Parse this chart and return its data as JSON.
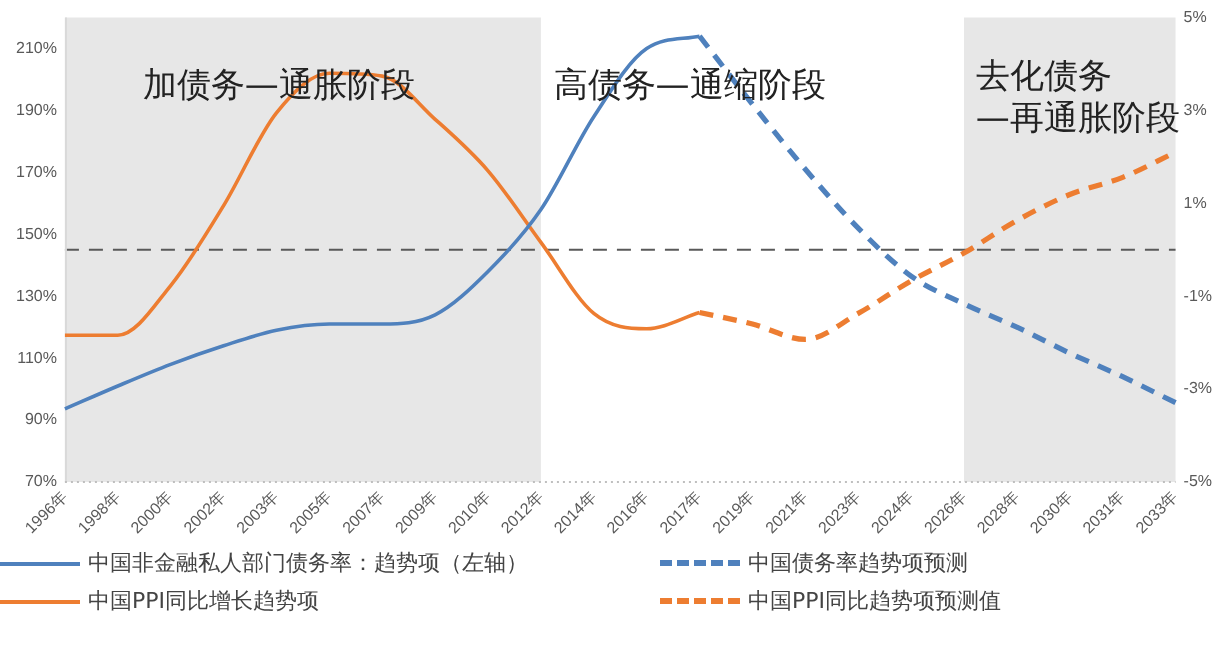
{
  "chart_data": {
    "type": "line",
    "categories": [
      "1996年",
      "1998年",
      "2000年",
      "2002年",
      "2003年",
      "2005年",
      "2007年",
      "2009年",
      "2010年",
      "2012年",
      "2014年",
      "2016年",
      "2017年",
      "2019年",
      "2021年",
      "2023年",
      "2024年",
      "2026年",
      "2028年",
      "2030年",
      "2031年",
      "2033年"
    ],
    "series": [
      {
        "name": "中国非金融私人部门债务率：趋势项（左轴）",
        "color": "#4f81bd",
        "values": [
          93.6,
          101,
          108,
          114,
          119,
          121,
          121,
          124,
          138,
          158,
          188,
          210,
          214,
          null,
          null,
          null,
          null,
          null,
          null,
          null,
          null,
          null
        ]
      },
      {
        "name": "中国债务率趋势项预测",
        "color": "#4f81bd",
        "line_style": "dashed",
        "values": [
          null,
          null,
          null,
          null,
          null,
          null,
          null,
          null,
          null,
          null,
          null,
          null,
          214,
          192,
          171,
          152,
          136.5,
          127.5,
          120,
          111.6,
          104,
          95.6
        ]
      },
      {
        "name": "中国PPI同比增长趋势项",
        "color": "#ed7d31",
        "axis": "y2",
        "values": [
          -1.84,
          -1.84,
          -0.77,
          0.95,
          2.95,
          3.8,
          3.74,
          2.81,
          1.7,
          0.16,
          -1.37,
          -1.7,
          -1.35,
          null,
          null,
          null,
          null,
          null,
          null,
          null,
          null,
          null
        ]
      },
      {
        "name": "中国PPI同比趋势项预测值",
        "color": "#ed7d31",
        "axis": "y2",
        "line_style": "dashed",
        "values": [
          null,
          null,
          null,
          null,
          null,
          null,
          null,
          null,
          null,
          null,
          null,
          null,
          -1.35,
          -1.6,
          -1.93,
          -1.37,
          -0.67,
          -0.07,
          0.63,
          1.19,
          1.56,
          2.1
        ]
      }
    ],
    "ylim": [
      70,
      220
    ],
    "yticks": [
      {
        "value": 70,
        "label": "70%"
      },
      {
        "value": 90,
        "label": "90%"
      },
      {
        "value": 110,
        "label": "110%"
      },
      {
        "value": 130,
        "label": "130%"
      },
      {
        "value": 150,
        "label": "150%"
      },
      {
        "value": 170,
        "label": "170%"
      },
      {
        "value": 190,
        "label": "190%"
      },
      {
        "value": 210,
        "label": "210%"
      }
    ],
    "y2lim": [
      -5,
      5
    ],
    "y2ticks": [
      {
        "value": -5,
        "label": "-5%"
      },
      {
        "value": -3,
        "label": "-3%"
      },
      {
        "value": -1,
        "label": "-1%"
      },
      {
        "value": 1,
        "label": "1%"
      },
      {
        "value": 3,
        "label": "3%"
      },
      {
        "value": 5,
        "label": "5%"
      }
    ],
    "bands": [
      {
        "axis": "x",
        "from": "1996年",
        "to": "2012年",
        "color": "#e7e7e7"
      },
      {
        "axis": "x",
        "from": "2026年",
        "to": "2033年",
        "color": "#e7e7e7"
      }
    ],
    "ref_lines": [
      {
        "axis": "y2",
        "value": 0,
        "color": "#595959",
        "line_style": "dashed"
      }
    ],
    "annotations": [
      "加债务—通胀阶段",
      "高债务—通缩阶段",
      "去化债务\n—再通胀阶段"
    ],
    "grid": false,
    "marker": "none",
    "line_style": "solid",
    "legend": "bottom"
  }
}
